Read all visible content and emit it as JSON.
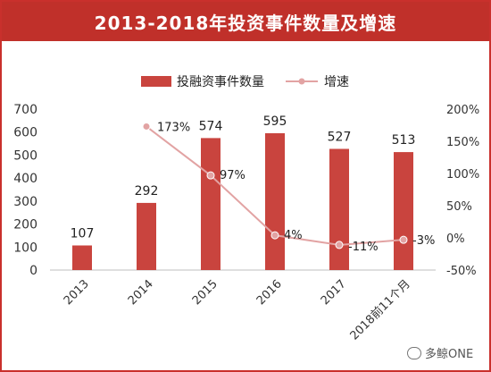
{
  "chart_data": {
    "type": "bar",
    "title": "2013-2018年投资事件数量及增速",
    "categories": [
      "2013",
      "2014",
      "2015",
      "2016",
      "2017",
      "2018前11个月"
    ],
    "series": [
      {
        "name": "投融资事件数量",
        "type": "bar",
        "axis": "left",
        "color": "#c9443e",
        "values": [
          107,
          292,
          574,
          595,
          527,
          513
        ],
        "value_labels": [
          "107",
          "292",
          "574",
          "595",
          "527",
          "513"
        ]
      },
      {
        "name": "增速",
        "type": "line",
        "axis": "right",
        "color": "#e2a3a3",
        "values": [
          null,
          173,
          97,
          4,
          -11,
          -3
        ],
        "value_labels": [
          "",
          "173%",
          "97%",
          "4%",
          "-11%",
          "-3%"
        ]
      }
    ],
    "y_left": {
      "min": 0,
      "max": 700,
      "ticks": [
        "0",
        "100",
        "200",
        "300",
        "400",
        "500",
        "600",
        "700"
      ]
    },
    "y_right": {
      "min": -50,
      "max": 200,
      "ticks": [
        "-50%",
        "0%",
        "50%",
        "100%",
        "150%",
        "200%"
      ]
    },
    "legend_position": "top-center",
    "grid": false
  },
  "watermark": {
    "text": "多鲸ONE",
    "icon": "wechat-icon"
  }
}
